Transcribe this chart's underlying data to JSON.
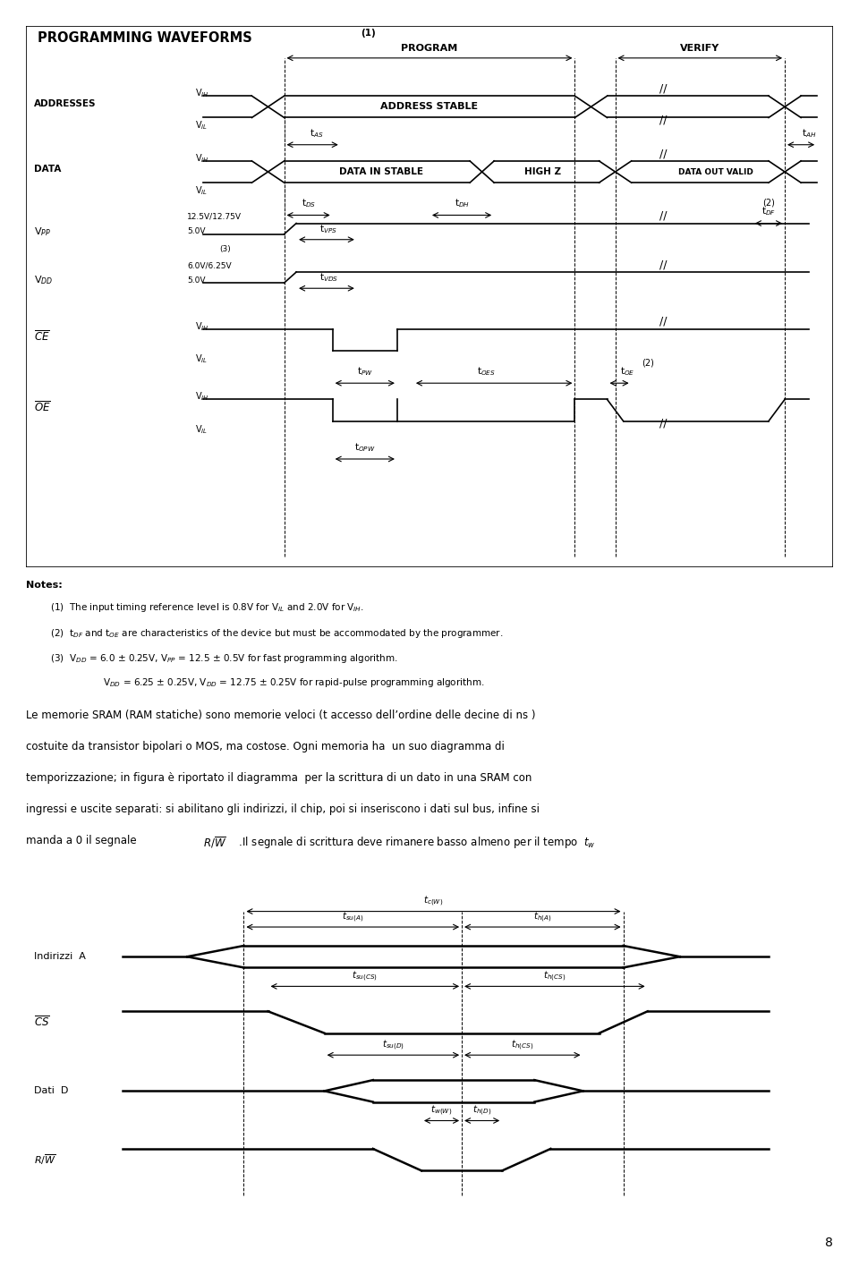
{
  "bg_color": "#ffffff",
  "title1": "PROGRAMMING WAVEFORMS",
  "title_super": "(1)",
  "program_label": "PROGRAM",
  "verify_label": "VERIFY",
  "addr_label": "ADDRESSES",
  "addr_stable": "ADDRESS STABLE",
  "data_label": "DATA",
  "data_in_stable": "DATA IN STABLE",
  "high_z": "HIGH Z",
  "data_out_valid": "DATA OUT VALID",
  "vpp_label": "V$_{PP}$",
  "vpp_hi": "12.5V/12.75V",
  "vpp_lo": "5.0V",
  "vdd_label": "V$_{DD}$",
  "vdd_hi": "6.0V/6.25V",
  "vdd_lo": "5.0V",
  "ce_label": "$\\overline{CE}$",
  "oe_label": "$\\overline{OE}$",
  "vih": "V$_{IH}$",
  "vil": "V$_{IL}$",
  "note3_label": "(3)",
  "tvps_label": "t$_{VPS}$",
  "tvds_label": "t$_{VDS}$",
  "tas_label": "t$_{AS}$",
  "tah_label": "t$_{AH}$",
  "tds_label": "t$_{DS}$",
  "tdh_label": "t$_{DH}$",
  "tdf_label": "t$_{DF}$",
  "tpw_label": "t$_{PW}$",
  "toes_label": "t$_{OES}$",
  "toe_label": "t$_{OE}$",
  "topw_label": "t$_{OPW}$",
  "note2_tdf": "(2)",
  "note2_toe": "(2)",
  "notes_title": "Notes:",
  "note1": "(1)  The input timing reference level is 0.8V for V$_{IL}$ and 2.0V for V$_{IH}$.",
  "note2": "(2)  t$_{DF}$ and t$_{OE}$ are characteristics of the device but must be accommodated by the programmer.",
  "note3a": "(3)  V$_{DD}$ = 6.0 ± 0.25V, V$_{PP}$ = 12.5 ± 0.5V for fast programming algorithm.",
  "note3b": "       V$_{DD}$ = 6.25 ± 0.25V, V$_{DD}$ = 12.75 ± 0.25V for rapid-pulse programming algorithm.",
  "para1": "Le memorie SRAM (RAM statiche) sono memorie veloci (t accesso dell’ordine delle decine di ns )",
  "para2": "costuite da transistor bipolari o MOS, ma costose. Ogni memoria ha  un suo diagramma di",
  "para3": "temporizzazione; in figura è riportato il diagramma  per la scrittura di un dato in una SRAM con",
  "para4": "ingressi e uscite separati: si abilitano gli indirizzi, il chip, poi si inseriscono i dati sul bus, infine si",
  "para5a": "manda a 0 il segnale  ",
  "para5b": "$R/\\overline{W}$",
  "para5c": " .Il segnale di scrittura deve rimanere basso almeno per il tempo  $t_w$",
  "sram_indirizzi": "Indirizzi  A",
  "sram_cs": "$\\overline{CS}$",
  "sram_dati": "Dati  D",
  "sram_rw": "$R/\\overline{W}$",
  "tc_w": "$t_{c(W)}$",
  "tsu_a": "$t_{su(A)}$",
  "th_a": "$t_{h(A)}$",
  "tsu_cs": "$t_{su(CS)}$",
  "th_cs": "$t_{h(CS)}$",
  "tsu_d": "$t_{su(D)}$",
  "th_cs2": "$t_{h(CS)}$",
  "tw_w": "$t_{w(W)}$",
  "th_d": "$t_{h(D)}$",
  "page": "8"
}
